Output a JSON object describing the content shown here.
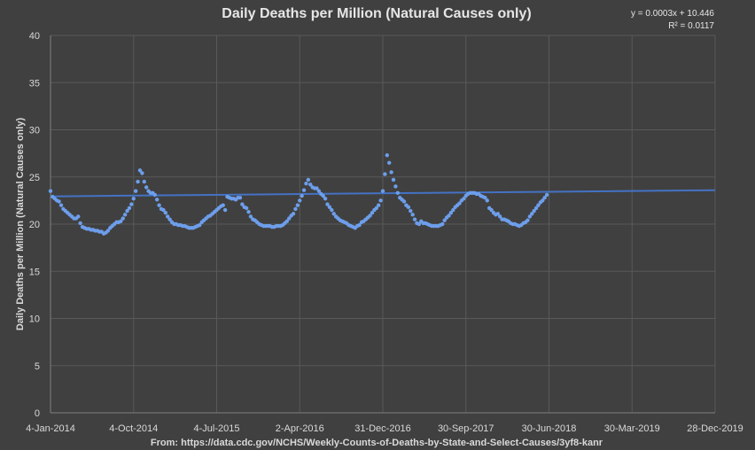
{
  "chart_data": {
    "type": "scatter",
    "title": "Daily Deaths per Million (Natural Causes only)",
    "ylabel": "Daily Deaths per Million (Natural Causes only)",
    "xlabel": "",
    "source": "From: https://data.cdc.gov/NCHS/Weekly-Counts-of-Deaths-by-State-and-Select-Causes/3yf8-kanr",
    "trendline_equation": "y = 0.0003x + 10.446",
    "trendline_r2": "R² = 0.0117",
    "trendline": {
      "slope": 0.0003,
      "intercept": 10.446
    },
    "ylim": [
      0,
      40
    ],
    "yticks": [
      0,
      5,
      10,
      15,
      20,
      25,
      30,
      35,
      40
    ],
    "xlim": [
      "2014-01-04",
      "2019-12-28"
    ],
    "xticks": [
      "2014-01-04",
      "2014-10-04",
      "2015-07-04",
      "2016-04-02",
      "2016-12-31",
      "2017-09-30",
      "2018-06-30",
      "2019-03-30",
      "2019-12-28"
    ],
    "xtick_labels": [
      "4-Jan-2014",
      "4-Oct-2014",
      "4-Jul-2015",
      "2-Apr-2016",
      "31-Dec-2016",
      "30-Sep-2017",
      "30-Jun-2018",
      "30-Mar-2019",
      "28-Dec-2019"
    ],
    "grid": true,
    "marker_color": "#6d9eeb",
    "trendline_color": "#4472c4",
    "series": [
      {
        "start_date": "2014-01-04",
        "interval_days": 7,
        "values": [
          23.5,
          22.9,
          22.7,
          22.5,
          22.4,
          22.0,
          21.6,
          21.4,
          21.2,
          21.0,
          20.8,
          20.6,
          20.6,
          20.8,
          20.1,
          19.7,
          19.6,
          19.5,
          19.5,
          19.4,
          19.4,
          19.3,
          19.3,
          19.2,
          19.2,
          19.0,
          19.1,
          19.3,
          19.6,
          19.8,
          20.0,
          20.2,
          20.2,
          20.3,
          20.6,
          21.0,
          21.4,
          21.7,
          22.1,
          22.7,
          23.5,
          24.5,
          25.7,
          25.4,
          24.5,
          23.9,
          23.5,
          23.3,
          23.3,
          23.1,
          22.6,
          22.0,
          21.6,
          21.5,
          21.2,
          20.8,
          20.5,
          20.2,
          20.0,
          20.0,
          19.9,
          19.9,
          19.8,
          19.8,
          19.7,
          19.6,
          19.6,
          19.6,
          19.7,
          19.8,
          19.9,
          20.2,
          20.4,
          20.6,
          20.8,
          20.9,
          21.1,
          21.3,
          21.5,
          21.7,
          21.9,
          22.0,
          21.5,
          22.9,
          22.8,
          22.7,
          22.7,
          22.6,
          22.8,
          22.8,
          22.1,
          21.8,
          21.7,
          21.3,
          20.8,
          20.5,
          20.4,
          20.2,
          20.0,
          19.9,
          19.8,
          19.8,
          19.8,
          19.8,
          19.7,
          19.7,
          19.8,
          19.8,
          19.8,
          19.9,
          20.1,
          20.3,
          20.6,
          20.9,
          21.1,
          21.6,
          22.0,
          22.5,
          23.0,
          23.6,
          24.3,
          24.7,
          24.2,
          23.9,
          23.8,
          23.8,
          23.5,
          23.2,
          23.0,
          22.7,
          22.1,
          21.8,
          21.5,
          21.1,
          20.8,
          20.6,
          20.4,
          20.3,
          20.2,
          20.1,
          19.9,
          19.8,
          19.7,
          19.6,
          19.8,
          19.9,
          20.2,
          20.3,
          20.5,
          20.7,
          20.9,
          21.2,
          21.5,
          21.7,
          22.0,
          22.5,
          23.5,
          25.3,
          27.3,
          26.5,
          25.5,
          24.7,
          24.0,
          23.3,
          22.8,
          22.6,
          22.4,
          22.0,
          21.8,
          21.4,
          21.0,
          20.5,
          20.1,
          20.0,
          20.3,
          20.1,
          20.1,
          20.0,
          19.9,
          19.8,
          19.8,
          19.8,
          19.8,
          19.9,
          20.0,
          20.4,
          20.7,
          20.9,
          21.2,
          21.5,
          21.8,
          22.0,
          22.2,
          22.5,
          22.7,
          23.0,
          23.2,
          23.3,
          23.3,
          23.3,
          23.2,
          23.2,
          23.0,
          22.9,
          22.8,
          22.5,
          21.7,
          21.5,
          21.2,
          21.0,
          21.1,
          20.8,
          20.5,
          20.5,
          20.4,
          20.3,
          20.1,
          20.0,
          20.0,
          19.9,
          19.8,
          19.9,
          20.1,
          20.2,
          20.4,
          20.8,
          21.1,
          21.4,
          21.7,
          22.0,
          22.3,
          22.5,
          22.8,
          23.1
        ]
      }
    ]
  }
}
